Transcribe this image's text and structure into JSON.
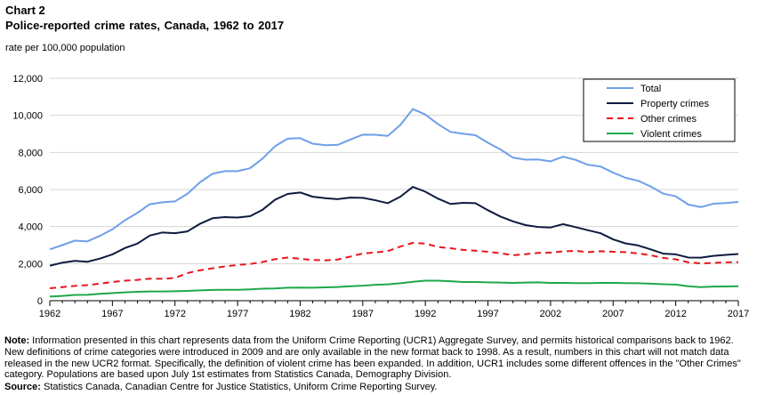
{
  "chart_number": "Chart 2",
  "title": "Police-reported crime rates, Canada, 1962 to 2017",
  "note_label": "Note:",
  "note_text": "Information presented in this chart represents data from the Uniform Crime Reporting (UCR1) Aggregate Survey, and permits historical comparisons back to 1962. New definitions of crime categories were introduced in 2009 and are only available in the new format back to 1998. As a result, numbers in this chart will not match data released in the new UCR2 format. Specifically, the definition of violent crime has been expanded. In addition, UCR1 includes some different offences in the \"Other Crimes\" category. Populations are based upon July 1st estimates from Statistics Canada, Demography Division.",
  "source_label": "Source:",
  "source_text": "Statistics Canada, Canadian Centre for Justice Statistics, Uniform Crime Reporting Survey.",
  "chart_data": {
    "type": "line",
    "title": "Police-reported crime rates, Canada, 1962 to 2017",
    "xlabel": "",
    "ylabel": "rate per 100,000 population",
    "ylim": [
      0,
      12000
    ],
    "xlim": [
      1962,
      2017
    ],
    "x_ticks": [
      1962,
      1967,
      1972,
      1977,
      1982,
      1987,
      1992,
      1997,
      2002,
      2007,
      2012,
      2017
    ],
    "y_ticks": [
      0,
      2000,
      4000,
      6000,
      8000,
      10000,
      12000
    ],
    "y_tick_labels": [
      "0",
      "2,000",
      "4,000",
      "6,000",
      "8,000",
      "10,000",
      "12,000"
    ],
    "grid": "horizontal",
    "legend_position": "top-right",
    "x": [
      1962,
      1963,
      1964,
      1965,
      1966,
      1967,
      1968,
      1969,
      1970,
      1971,
      1972,
      1973,
      1974,
      1975,
      1976,
      1977,
      1978,
      1979,
      1980,
      1981,
      1982,
      1983,
      1984,
      1985,
      1986,
      1987,
      1988,
      1989,
      1990,
      1991,
      1992,
      1993,
      1994,
      1995,
      1996,
      1997,
      1998,
      1999,
      2000,
      2001,
      2002,
      2003,
      2004,
      2005,
      2006,
      2007,
      2008,
      2009,
      2010,
      2011,
      2012,
      2013,
      2014,
      2015,
      2016,
      2017
    ],
    "series": [
      {
        "name": "Total",
        "color": "#6f9fe8",
        "dash": "solid",
        "values": [
          2770,
          3000,
          3240,
          3200,
          3500,
          3850,
          4340,
          4740,
          5210,
          5310,
          5360,
          5770,
          6390,
          6850,
          6990,
          6990,
          7150,
          7670,
          8340,
          8740,
          8770,
          8470,
          8390,
          8410,
          8690,
          8960,
          8950,
          8890,
          9480,
          10340,
          10040,
          9530,
          9110,
          9010,
          8930,
          8520,
          8160,
          7720,
          7610,
          7620,
          7520,
          7770,
          7600,
          7330,
          7240,
          6910,
          6630,
          6470,
          6160,
          5780,
          5630,
          5190,
          5050,
          5230,
          5270,
          5330
        ]
      },
      {
        "name": "Property crimes",
        "color": "#0d1b3e",
        "dash": "solid",
        "values": [
          1890,
          2050,
          2150,
          2100,
          2270,
          2500,
          2840,
          3080,
          3520,
          3680,
          3640,
          3740,
          4150,
          4450,
          4510,
          4490,
          4560,
          4910,
          5450,
          5760,
          5840,
          5610,
          5530,
          5480,
          5560,
          5550,
          5420,
          5260,
          5610,
          6140,
          5880,
          5510,
          5220,
          5280,
          5260,
          4880,
          4540,
          4280,
          4080,
          3980,
          3950,
          4130,
          3970,
          3800,
          3640,
          3310,
          3090,
          2980,
          2770,
          2540,
          2500,
          2330,
          2320,
          2420,
          2470,
          2520
        ]
      },
      {
        "name": "Other crimes",
        "color": "#e8151b",
        "dash": "dashed",
        "values": [
          670,
          730,
          800,
          840,
          920,
          1010,
          1080,
          1120,
          1190,
          1180,
          1230,
          1490,
          1640,
          1750,
          1850,
          1930,
          1980,
          2090,
          2240,
          2330,
          2260,
          2200,
          2180,
          2220,
          2380,
          2550,
          2600,
          2680,
          2920,
          3120,
          3080,
          2900,
          2830,
          2740,
          2700,
          2640,
          2560,
          2450,
          2510,
          2580,
          2590,
          2660,
          2690,
          2620,
          2670,
          2640,
          2620,
          2550,
          2450,
          2310,
          2230,
          2070,
          2010,
          2040,
          2070,
          2080
        ]
      },
      {
        "name": "Violent crimes",
        "color": "#1fa84a",
        "dash": "solid",
        "values": [
          220,
          260,
          310,
          320,
          370,
          410,
          450,
          480,
          500,
          500,
          510,
          530,
          560,
          580,
          590,
          590,
          610,
          650,
          660,
          700,
          710,
          700,
          720,
          740,
          780,
          810,
          860,
          880,
          940,
          1020,
          1080,
          1080,
          1050,
          1010,
          1010,
          990,
          980,
          960,
          980,
          990,
          960,
          960,
          950,
          950,
          960,
          960,
          950,
          940,
          920,
          890,
          870,
          780,
          730,
          760,
          770,
          780
        ]
      }
    ]
  }
}
